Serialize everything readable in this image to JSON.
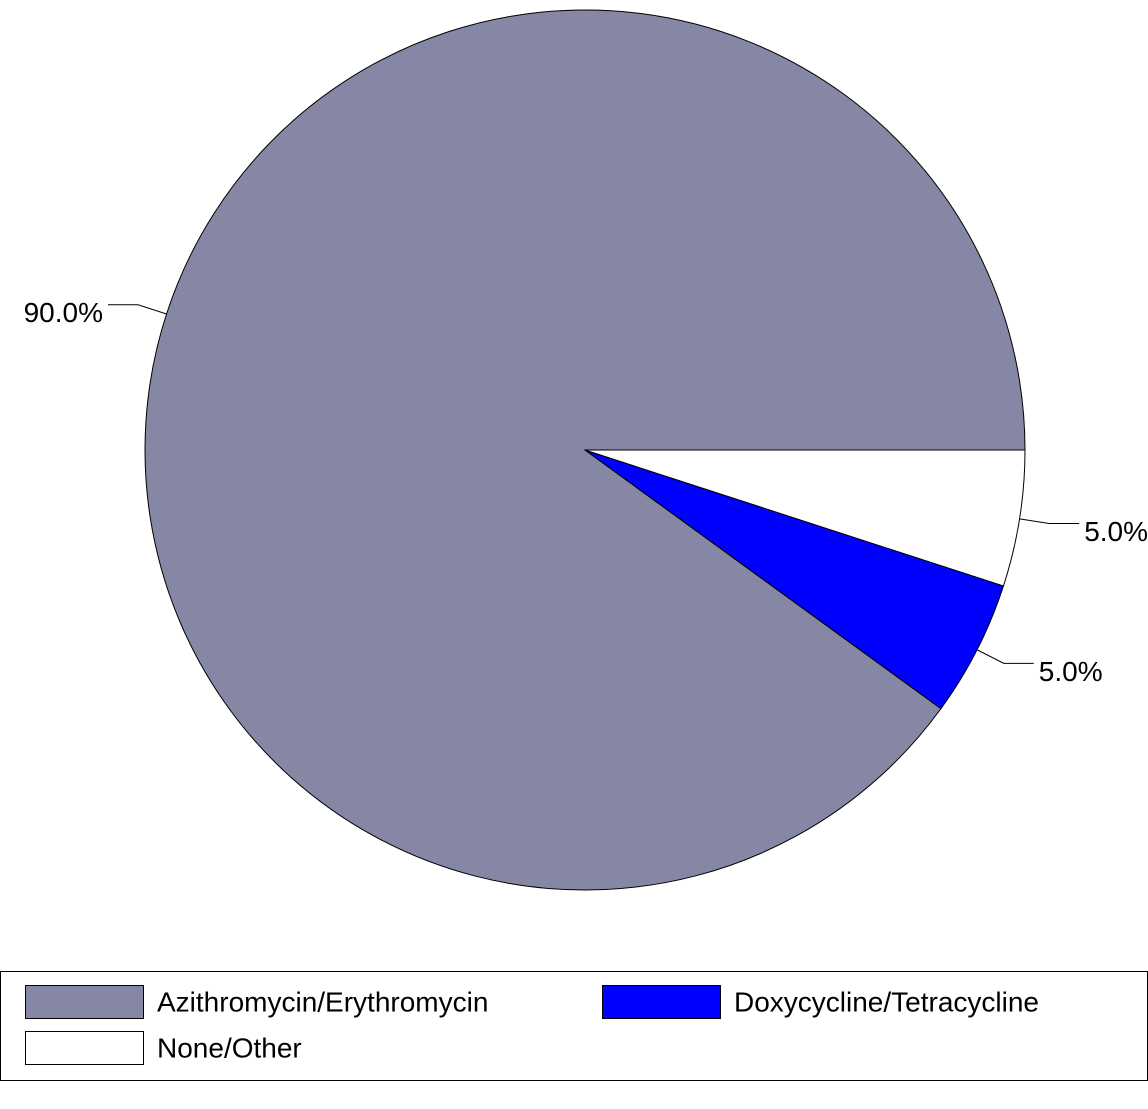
{
  "chart_data": {
    "type": "pie",
    "categories": [
      "Azithromycin/Erythromycin",
      "Doxycycline/Tetracycline",
      "None/Other"
    ],
    "values": [
      90,
      5,
      5
    ],
    "value_labels": [
      "90.0%",
      "5.0%",
      "5.0%"
    ],
    "colors": [
      "#8687a5",
      "#0000ff",
      "#ffffff"
    ],
    "legend": "bottom"
  }
}
